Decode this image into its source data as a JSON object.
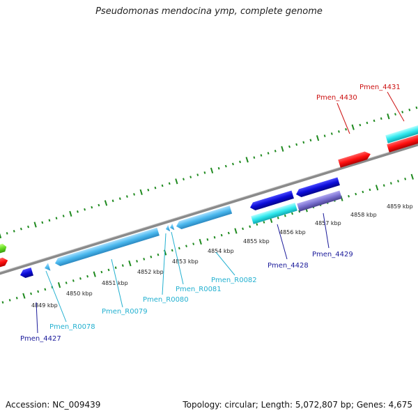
{
  "title": "Pseudomonas mendocina ymp, complete genome",
  "footer": {
    "accession": "Accession: NC_009439",
    "summary": "Topology: circular; Length: 5,072,807 bp; Genes: 4,675"
  },
  "colors": {
    "backbone": "#8a8a8a",
    "tick": "#1f8a1f",
    "cds_red": "#ff1010",
    "cds_blue": "#0b0bd8",
    "cds_purple": "#7a70d0",
    "trna_lightblue": "#4ab8ee",
    "trna_cyan": "#2fe8ee",
    "green": "#66dd22",
    "label_red": "#cc1111",
    "label_blue": "#1a1a9a",
    "label_cyan": "#22b0d0"
  },
  "kbp_labels": [
    "4849 kbp",
    "4850 kbp",
    "4851 kbp",
    "4852 kbp",
    "4853 kbp",
    "4854 kbp",
    "4855 kbp",
    "4856 kbp",
    "4857 kbp",
    "4858 kbp",
    "4859 kbp"
  ],
  "gene_labels": [
    "Pmen_4427",
    "Pmen_R0078",
    "Pmen_R0079",
    "Pmen_R0080",
    "Pmen_R0081",
    "Pmen_R0082",
    "Pmen_4428",
    "Pmen_4429",
    "Pmen_4430",
    "Pmen_4431"
  ]
}
